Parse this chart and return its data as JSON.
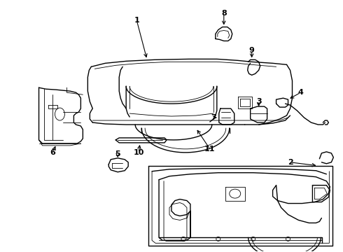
{
  "background_color": "#ffffff",
  "line_color": "#000000",
  "fig_width": 4.9,
  "fig_height": 3.6,
  "dpi": 100,
  "label_fontsize": 8,
  "label_fontweight": "bold"
}
